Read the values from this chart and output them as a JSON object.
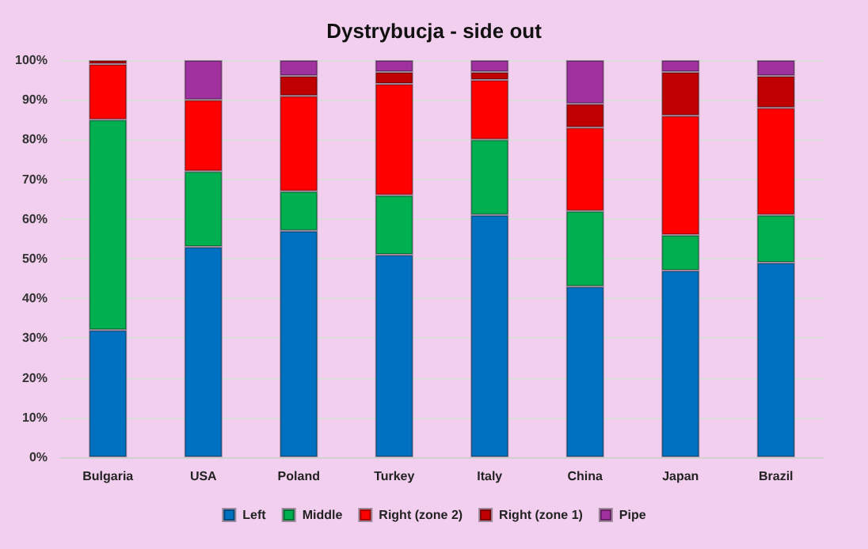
{
  "chart_data": {
    "type": "bar",
    "title": "Dystrybucja - side out",
    "stacked": true,
    "categories": [
      "Bulgaria",
      "USA",
      "Poland",
      "Turkey",
      "Italy",
      "China",
      "Japan",
      "Brazil"
    ],
    "series": [
      {
        "name": "Left",
        "color": "#0070c0",
        "values": [
          32,
          53,
          57,
          51,
          61,
          43,
          47,
          49
        ]
      },
      {
        "name": "Middle",
        "color": "#00b050",
        "values": [
          53,
          19,
          10,
          15,
          19,
          19,
          9,
          12
        ]
      },
      {
        "name": "Right (zone 2)",
        "color": "#ff0000",
        "values": [
          14,
          18,
          24,
          28,
          15,
          21,
          30,
          27
        ]
      },
      {
        "name": "Right (zone 1)",
        "color": "#c00000",
        "values": [
          1,
          0,
          5,
          3,
          2,
          6,
          11,
          8
        ]
      },
      {
        "name": "Pipe",
        "color": "#a0329f",
        "values": [
          0,
          10,
          4,
          3,
          3,
          11,
          3,
          4
        ]
      }
    ],
    "ylim": [
      0,
      100
    ],
    "yticks": [
      {
        "value": 0,
        "label": "0%"
      },
      {
        "value": 10,
        "label": "10%"
      },
      {
        "value": 20,
        "label": "20%"
      },
      {
        "value": 30,
        "label": "30%"
      },
      {
        "value": 40,
        "label": "40%"
      },
      {
        "value": 50,
        "label": "50%"
      },
      {
        "value": 60,
        "label": "60%"
      },
      {
        "value": 70,
        "label": "70%"
      },
      {
        "value": 80,
        "label": "80%"
      },
      {
        "value": 90,
        "label": "90%"
      },
      {
        "value": 100,
        "label": "100%"
      }
    ],
    "grid": "y",
    "legend": "bottom"
  }
}
